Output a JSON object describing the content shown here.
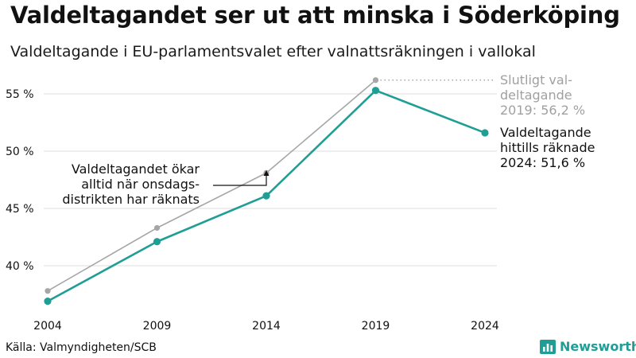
{
  "header": {
    "title": "Valdeltagandet ser ut att minska i Söderköping",
    "subtitle": "Valdeltagande i EU-parlamentsvalet efter valnattsräkningen i vallokal"
  },
  "footer": {
    "source": "Källa: Valmyndigheten/SCB",
    "brand": "Newsworthy"
  },
  "colors": {
    "counted": "#1f9e96",
    "final": "#a6a6a6",
    "grid": "#dcdcdc",
    "text": "#111111",
    "muted": "#a0a0a0"
  },
  "icons": {
    "brand": "bar-chart-icon",
    "arrow": "arrow-up-icon"
  },
  "chart_data": {
    "type": "line",
    "x": [
      2004,
      2009,
      2014,
      2019,
      2024
    ],
    "xticklabels": [
      "2004",
      "2009",
      "2014",
      "2019",
      "2024"
    ],
    "ylim": [
      35,
      57
    ],
    "yticks": [
      40,
      45,
      50,
      55
    ],
    "yticklabels": [
      "40 %",
      "45 %",
      "50 %",
      "55 %"
    ],
    "grid": true,
    "series": [
      {
        "name": "Slutligt valdeltagande",
        "values": [
          37.8,
          43.3,
          48.1,
          56.2,
          null
        ]
      },
      {
        "name": "Valdeltagande hittills räknade",
        "values": [
          36.9,
          42.1,
          46.1,
          55.3,
          51.6
        ]
      }
    ],
    "annotations": {
      "final_label": [
        "Slutligt val-",
        "deltagande",
        "2019: 56,2 %"
      ],
      "counted_label": [
        "Valdeltagande",
        "hittills räknade",
        "2024: 51,6 %"
      ],
      "note": [
        "Valdeltagandet ökar",
        "alltid när onsdags-",
        "distrikten har räknats"
      ],
      "note_x": 2014
    }
  }
}
